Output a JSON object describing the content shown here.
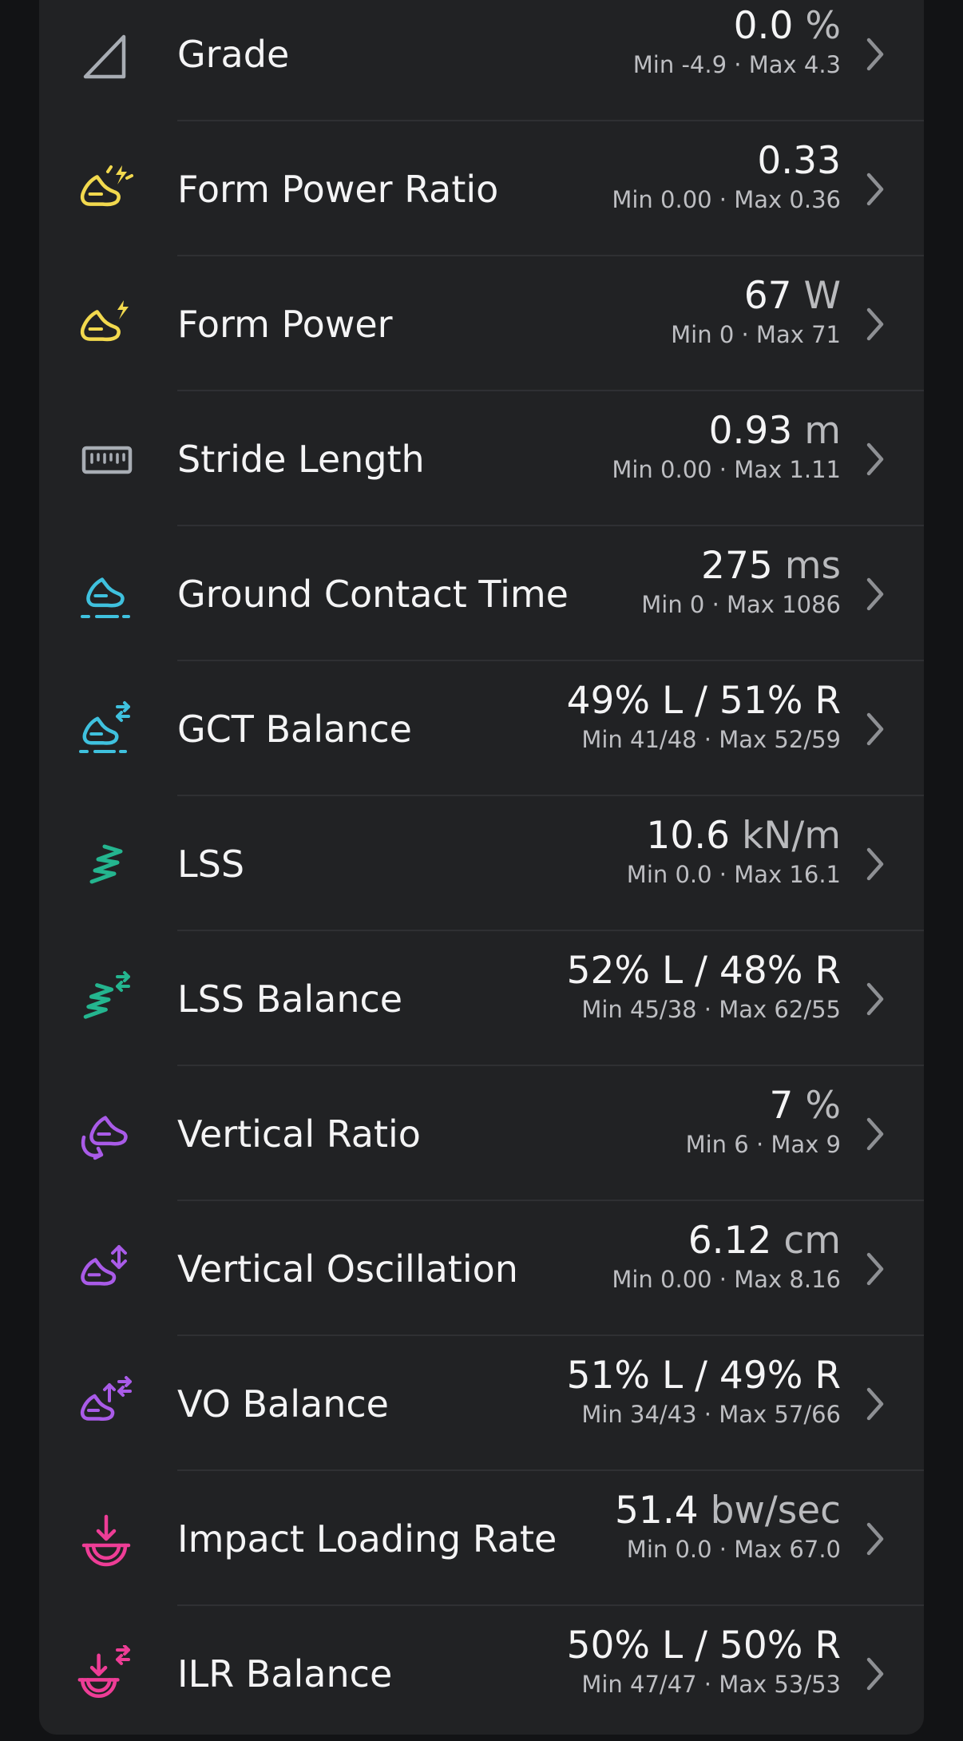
{
  "metrics": [
    {
      "label": "Grade",
      "value": "0.0",
      "unit": "%",
      "min_max": "Min -4.9 · Max 4.3",
      "icon": "grade-icon",
      "color": "#a8adb4"
    },
    {
      "label": "Form Power Ratio",
      "value": "0.33",
      "unit": "",
      "min_max": "Min 0.00 · Max 0.36",
      "icon": "form-power-ratio-icon",
      "color": "#f2d94e"
    },
    {
      "label": "Form Power",
      "value": "67",
      "unit": "W",
      "min_max": "Min 0 · Max 71",
      "icon": "form-power-icon",
      "color": "#f2d94e"
    },
    {
      "label": "Stride Length",
      "value": "0.93",
      "unit": "m",
      "min_max": "Min 0.00 · Max 1.11",
      "icon": "ruler-icon",
      "color": "#a8adb4"
    },
    {
      "label": "Ground Contact Time",
      "value": "275",
      "unit": "ms",
      "min_max": "Min 0 · Max 1086",
      "icon": "ground-contact-icon",
      "color": "#3fc1de"
    },
    {
      "label": "GCT Balance",
      "value": "49% L / 51% R",
      "unit": "",
      "min_max": "Min 41/48 · Max 52/59",
      "icon": "gct-balance-icon",
      "color": "#3fc1de"
    },
    {
      "label": "LSS",
      "value": "10.6",
      "unit": "kN/m",
      "min_max": "Min 0.0 · Max 16.1",
      "icon": "spring-icon",
      "color": "#24b58f"
    },
    {
      "label": "LSS Balance",
      "value": "52% L / 48% R",
      "unit": "",
      "min_max": "Min 45/38 · Max 62/55",
      "icon": "spring-balance-icon",
      "color": "#24b58f"
    },
    {
      "label": "Vertical Ratio",
      "value": "7",
      "unit": "%",
      "min_max": "Min 6 · Max 9",
      "icon": "vertical-ratio-icon",
      "color": "#a95be8"
    },
    {
      "label": "Vertical Oscillation",
      "value": "6.12",
      "unit": "cm",
      "min_max": "Min 0.00 · Max 8.16",
      "icon": "vertical-oscillation-icon",
      "color": "#a95be8"
    },
    {
      "label": "VO Balance",
      "value": "51% L / 49% R",
      "unit": "",
      "min_max": "Min 34/43 · Max 57/66",
      "icon": "vo-balance-icon",
      "color": "#a95be8"
    },
    {
      "label": "Impact Loading Rate",
      "value": "51.4",
      "unit": "bw/sec",
      "min_max": "Min 0.0 · Max 67.0",
      "icon": "impact-icon",
      "color": "#ee3d96"
    },
    {
      "label": "ILR Balance",
      "value": "50% L / 50% R",
      "unit": "",
      "min_max": "Min 47/47 · Max 53/53",
      "icon": "impact-balance-icon",
      "color": "#ee3d96"
    }
  ],
  "chevron_icon": "chevron-right-icon"
}
